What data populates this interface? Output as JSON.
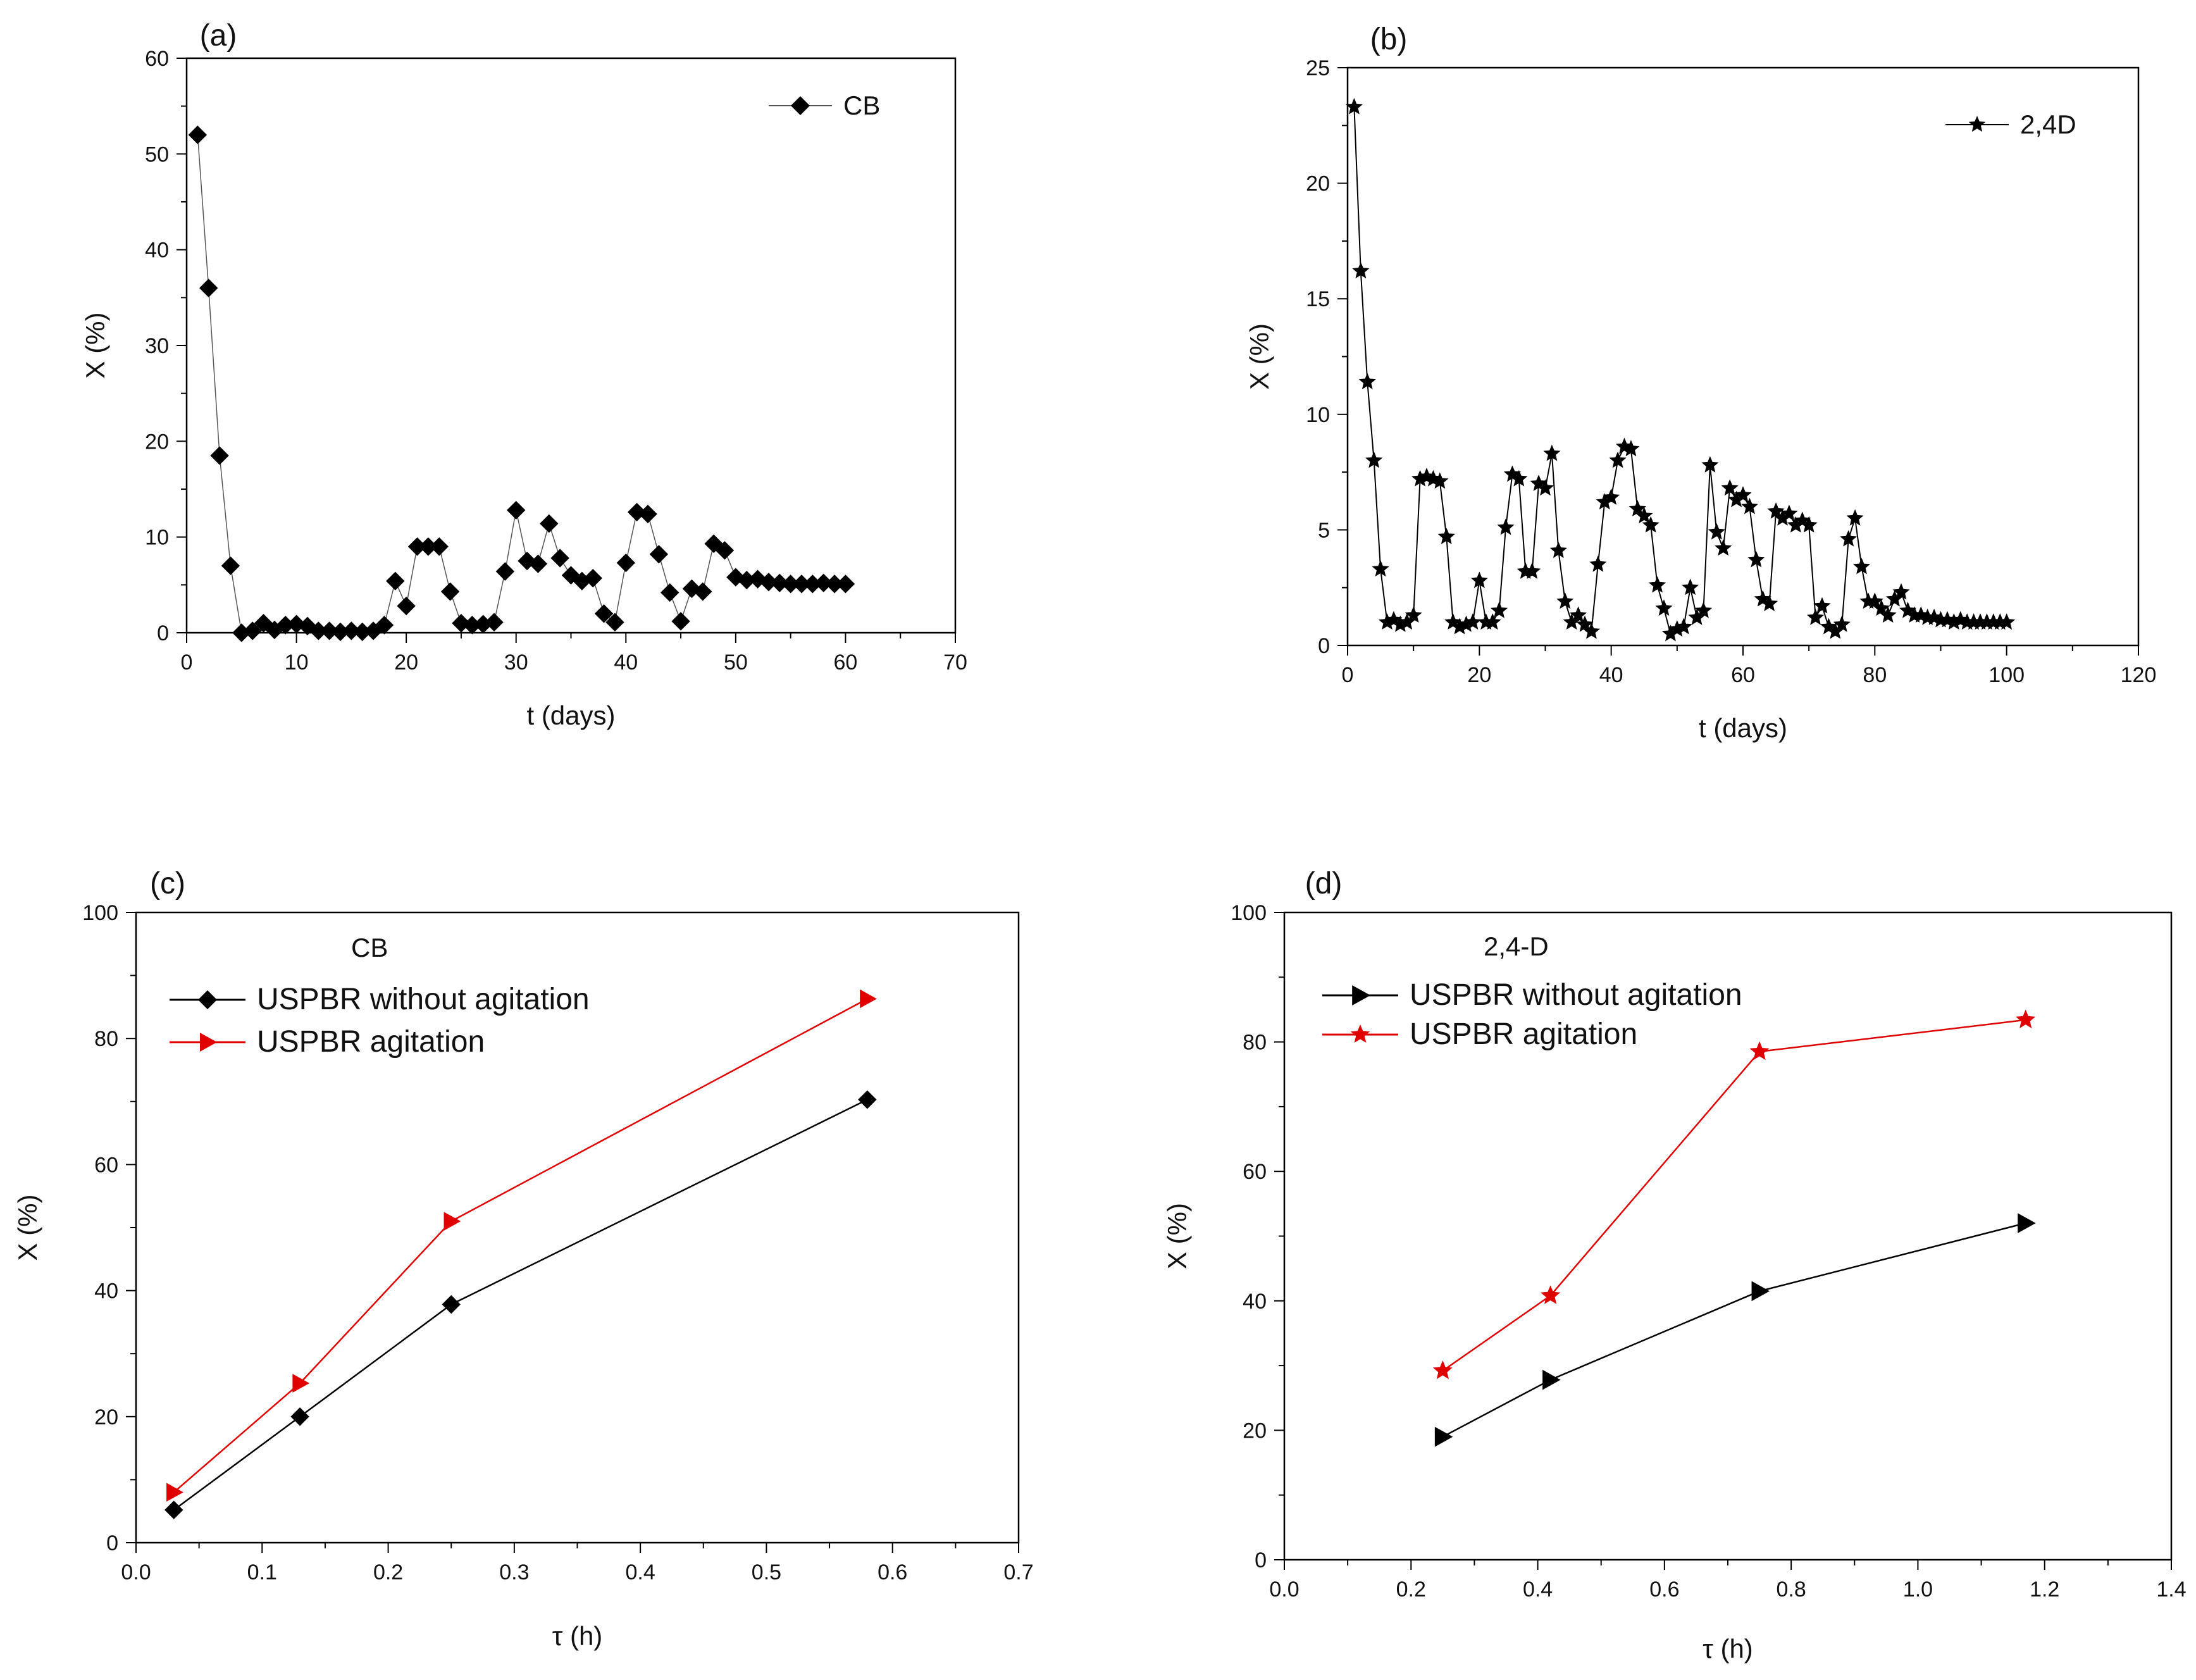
{
  "chart_data": [
    {
      "id": "a",
      "type": "line",
      "panel_label": "(a)",
      "xlabel": "t (days)",
      "ylabel": "X (%)",
      "xlim": [
        0,
        70
      ],
      "ylim": [
        0,
        60
      ],
      "xticks": [
        0,
        10,
        20,
        30,
        40,
        50,
        60,
        70
      ],
      "yticks": [
        0,
        10,
        20,
        30,
        40,
        50,
        60
      ],
      "legend_title": "",
      "series": [
        {
          "name": "CB",
          "color": "#000000",
          "marker": "diamond",
          "x": [
            1,
            2,
            3,
            4,
            5,
            6,
            7,
            8,
            9,
            10,
            11,
            12,
            13,
            14,
            15,
            16,
            17,
            18,
            19,
            20,
            21,
            22,
            23,
            24,
            25,
            26,
            27,
            28,
            29,
            30,
            31,
            32,
            33,
            34,
            35,
            36,
            37,
            38,
            39,
            40,
            41,
            42,
            43,
            44,
            45,
            46,
            47,
            48,
            49,
            50,
            51,
            52,
            53,
            54,
            55,
            56,
            57,
            58,
            59,
            60
          ],
          "y": [
            52,
            36,
            18.5,
            7,
            0,
            0.2,
            1,
            0.3,
            0.8,
            0.9,
            0.7,
            0.2,
            0.2,
            0.1,
            0.2,
            0.1,
            0.2,
            0.8,
            5.4,
            2.8,
            9,
            9,
            9,
            4.3,
            1,
            0.8,
            0.9,
            1.1,
            6.4,
            12.8,
            7.5,
            7.2,
            11.4,
            7.8,
            6,
            5.4,
            5.7,
            2,
            1.1,
            7.3,
            12.6,
            12.4,
            8.2,
            4.2,
            1.2,
            4.6,
            4.3,
            9.3,
            8.6,
            5.8,
            5.5,
            5.6,
            5.3,
            5.2,
            5.1,
            5.1,
            5.1,
            5.2,
            5.1,
            5.1
          ]
        }
      ]
    },
    {
      "id": "b",
      "type": "line",
      "panel_label": "(b)",
      "xlabel": "t (days)",
      "ylabel": "X (%)",
      "xlim": [
        0,
        120
      ],
      "ylim": [
        0,
        25
      ],
      "xticks": [
        0,
        20,
        40,
        60,
        80,
        100,
        120
      ],
      "yticks": [
        0,
        5,
        10,
        15,
        20,
        25
      ],
      "legend_title": "",
      "series": [
        {
          "name": "2,4D",
          "color": "#000000",
          "marker": "star",
          "x": [
            1,
            2,
            3,
            4,
            5,
            6,
            7,
            8,
            9,
            10,
            11,
            12,
            13,
            14,
            15,
            16,
            17,
            18,
            19,
            20,
            21,
            22,
            23,
            24,
            25,
            26,
            27,
            28,
            29,
            30,
            31,
            32,
            33,
            34,
            35,
            36,
            37,
            38,
            39,
            40,
            41,
            42,
            43,
            44,
            45,
            46,
            47,
            48,
            49,
            50,
            51,
            52,
            53,
            54,
            55,
            56,
            57,
            58,
            59,
            60,
            61,
            62,
            63,
            64,
            65,
            66,
            67,
            68,
            69,
            70,
            71,
            72,
            73,
            74,
            75,
            76,
            77,
            78,
            79,
            80,
            81,
            82,
            83,
            84,
            85,
            86,
            87,
            88,
            89,
            90,
            91,
            92,
            93,
            94,
            95,
            96,
            97,
            98,
            99,
            100
          ],
          "y": [
            23.3,
            16.2,
            11.4,
            8,
            3.3,
            1,
            1.1,
            0.9,
            1,
            1.3,
            7.2,
            7.3,
            7.2,
            7.1,
            4.7,
            1,
            0.8,
            0.9,
            1,
            2.8,
            1,
            1,
            1.5,
            5.1,
            7.4,
            7.2,
            3.2,
            3.2,
            7,
            6.8,
            8.3,
            4.1,
            1.9,
            1,
            1.3,
            0.9,
            0.6,
            3.5,
            6.2,
            6.4,
            8,
            8.6,
            8.5,
            5.9,
            5.6,
            5.2,
            2.6,
            1.6,
            0.5,
            0.7,
            0.8,
            2.5,
            1.2,
            1.5,
            7.8,
            4.9,
            4.2,
            6.8,
            6.3,
            6.5,
            6,
            3.7,
            2,
            1.8,
            5.8,
            5.5,
            5.7,
            5.2,
            5.4,
            5.2,
            1.2,
            1.7,
            0.8,
            0.6,
            0.9,
            4.6,
            5.5,
            3.4,
            1.9,
            1.9,
            1.6,
            1.3,
            2,
            2.3,
            1.5,
            1.3,
            1.3,
            1.2,
            1.2,
            1.1,
            1.1,
            1,
            1.1,
            1,
            1,
            1,
            1,
            1,
            1,
            1
          ]
        }
      ]
    },
    {
      "id": "c",
      "type": "line",
      "panel_label": "(c)",
      "xlabel": "τ (h)",
      "ylabel": "X (%)",
      "xlim": [
        0,
        0.7
      ],
      "ylim": [
        0,
        100
      ],
      "xticks": [
        0.0,
        0.1,
        0.2,
        0.3,
        0.4,
        0.5,
        0.6,
        0.7
      ],
      "yticks": [
        0,
        20,
        40,
        60,
        80,
        100
      ],
      "legend_title": "CB",
      "series": [
        {
          "name": "USPBR without agitation",
          "color": "#000000",
          "marker": "diamond",
          "x": [
            0.03,
            0.13,
            0.25,
            0.58
          ],
          "y": [
            5.2,
            20,
            37.8,
            70.3
          ]
        },
        {
          "name": "USPBR agitation",
          "color": "#e00000",
          "marker": "triangle-right",
          "x": [
            0.03,
            0.13,
            0.25,
            0.58
          ],
          "y": [
            8,
            25.3,
            51,
            86.3
          ]
        }
      ]
    },
    {
      "id": "d",
      "type": "line",
      "panel_label": "(d)",
      "xlabel": "τ (h)",
      "ylabel": "X (%)",
      "xlim": [
        0,
        1.4
      ],
      "ylim": [
        0,
        100
      ],
      "xticks": [
        0.0,
        0.2,
        0.4,
        0.6,
        0.8,
        1.0,
        1.2,
        1.4
      ],
      "yticks": [
        0,
        20,
        40,
        60,
        80,
        100
      ],
      "legend_title": "2,4-D",
      "series": [
        {
          "name": "USPBR without agitation",
          "color": "#000000",
          "marker": "triangle-right",
          "x": [
            0.25,
            0.42,
            0.75,
            1.17
          ],
          "y": [
            19,
            27.8,
            41.5,
            52
          ]
        },
        {
          "name": "USPBR agitation",
          "color": "#e00000",
          "marker": "star",
          "x": [
            0.25,
            0.42,
            0.75,
            1.17
          ],
          "y": [
            29.2,
            40.8,
            78.5,
            83.4
          ]
        }
      ]
    }
  ]
}
